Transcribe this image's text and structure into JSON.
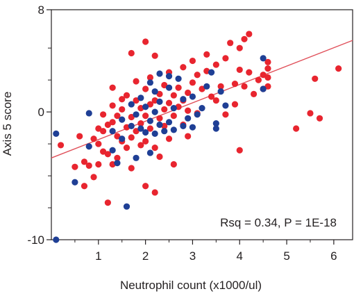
{
  "chart_data": {
    "type": "scatter",
    "title": "",
    "xlabel": "Neutrophil count (x1000/ul)",
    "ylabel": "Axis 5 score",
    "xlim": [
      0,
      6.4
    ],
    "ylim": [
      -10,
      8
    ],
    "x_ticks": [
      "1",
      "2",
      "3",
      "4",
      "5",
      "6"
    ],
    "y_ticks": [
      "8",
      "0",
      "-10"
    ],
    "annotation": "Rsq = 0.34, P = 1E-18",
    "grid": false,
    "colors": {
      "red": "#e8252f",
      "blue": "#1f3f95",
      "fit_line": "#e0505a",
      "axis": "#231f20"
    },
    "fit_line": {
      "x": [
        0,
        6.4
      ],
      "y": [
        -3.6,
        5.6
      ]
    },
    "series": [
      {
        "color": "red",
        "points": [
          [
            0.2,
            -2.6
          ],
          [
            0.5,
            -4.3
          ],
          [
            0.6,
            -1.9
          ],
          [
            0.7,
            -3.9
          ],
          [
            0.7,
            -5.8
          ],
          [
            0.8,
            -4.2
          ],
          [
            0.9,
            -2.1
          ],
          [
            0.9,
            -5.1
          ],
          [
            1.0,
            -1.3
          ],
          [
            1.0,
            -2.5
          ],
          [
            1.0,
            -4.1
          ],
          [
            1.1,
            -0.2
          ],
          [
            1.1,
            -1.5
          ],
          [
            1.1,
            -3.1
          ],
          [
            1.2,
            -7.1
          ],
          [
            1.2,
            -3.3
          ],
          [
            1.2,
            -1.0
          ],
          [
            1.3,
            0.5
          ],
          [
            1.3,
            1.9
          ],
          [
            1.3,
            -0.8
          ],
          [
            1.3,
            -4.1
          ],
          [
            1.4,
            -0.3
          ],
          [
            1.4,
            -1.9
          ],
          [
            1.4,
            -3.6
          ],
          [
            1.5,
            1.0
          ],
          [
            1.5,
            -2.3
          ],
          [
            1.5,
            0.2
          ],
          [
            1.6,
            -1.2
          ],
          [
            1.6,
            -2.8
          ],
          [
            1.6,
            1.3
          ],
          [
            1.7,
            4.6
          ],
          [
            1.7,
            -0.4
          ],
          [
            1.7,
            -2.0
          ],
          [
            1.7,
            -4.4
          ],
          [
            1.8,
            0.9
          ],
          [
            1.8,
            -1.5
          ],
          [
            1.8,
            2.4
          ],
          [
            1.9,
            0.3
          ],
          [
            1.9,
            -0.9
          ],
          [
            1.9,
            -2.6
          ],
          [
            2.0,
            5.5
          ],
          [
            2.0,
            1.8
          ],
          [
            2.0,
            -0.3
          ],
          [
            2.0,
            -5.8
          ],
          [
            2.0,
            -2.3
          ],
          [
            2.1,
            0.6
          ],
          [
            2.1,
            -1.3
          ],
          [
            2.1,
            2.7
          ],
          [
            2.2,
            -6.3
          ],
          [
            2.2,
            0.9
          ],
          [
            2.2,
            -2.8
          ],
          [
            2.2,
            4.4
          ],
          [
            2.3,
            1.4
          ],
          [
            2.3,
            -0.5
          ],
          [
            2.3,
            -3.5
          ],
          [
            2.4,
            0.2
          ],
          [
            2.4,
            2.1
          ],
          [
            2.4,
            -1.1
          ],
          [
            2.5,
            0.7
          ],
          [
            2.5,
            -2.1
          ],
          [
            2.5,
            3.1
          ],
          [
            2.6,
            1.3
          ],
          [
            2.6,
            -0.3
          ],
          [
            2.6,
            -4.1
          ],
          [
            2.7,
            0.4
          ],
          [
            2.7,
            1.9
          ],
          [
            2.8,
            0.9
          ],
          [
            2.8,
            -1.0
          ],
          [
            2.8,
            3.5
          ],
          [
            2.9,
            1.5
          ],
          [
            2.9,
            0.1
          ],
          [
            2.9,
            -1.9
          ],
          [
            3.0,
            2.3
          ],
          [
            3.0,
            4.0
          ],
          [
            3.1,
            2.9
          ],
          [
            3.1,
            -0.1
          ],
          [
            3.2,
            1.8
          ],
          [
            3.3,
            3.2
          ],
          [
            3.3,
            4.5
          ],
          [
            3.4,
            1.2
          ],
          [
            3.5,
            3.7
          ],
          [
            3.5,
            0.9
          ],
          [
            3.6,
            2.0
          ],
          [
            3.7,
            4.2
          ],
          [
            3.7,
            -0.2
          ],
          [
            3.8,
            5.4
          ],
          [
            3.9,
            2.2
          ],
          [
            3.9,
            0.6
          ],
          [
            4.0,
            5.0
          ],
          [
            4.0,
            3.3
          ],
          [
            4.0,
            -3.0
          ],
          [
            4.1,
            5.7
          ],
          [
            4.1,
            2.0
          ],
          [
            4.2,
            6.1
          ],
          [
            4.2,
            3.1
          ],
          [
            4.3,
            1.4
          ],
          [
            4.4,
            2.5
          ],
          [
            4.5,
            2.9
          ],
          [
            4.5,
            1.8
          ],
          [
            4.6,
            3.4
          ],
          [
            4.6,
            2.7
          ],
          [
            4.6,
            3.9
          ],
          [
            4.6,
            2.0
          ],
          [
            5.2,
            -1.3
          ],
          [
            5.5,
            -0.1
          ],
          [
            5.6,
            2.6
          ],
          [
            5.7,
            -0.5
          ],
          [
            6.1,
            3.4
          ]
        ]
      },
      {
        "color": "blue",
        "points": [
          [
            0.1,
            -10.0
          ],
          [
            0.1,
            -1.7
          ],
          [
            0.5,
            -5.5
          ],
          [
            0.8,
            -2.7
          ],
          [
            0.8,
            -0.1
          ],
          [
            1.3,
            -3.0
          ],
          [
            1.3,
            -1.5
          ],
          [
            1.4,
            -4.0
          ],
          [
            1.5,
            -2.1
          ],
          [
            1.5,
            -0.6
          ],
          [
            1.6,
            -7.4
          ],
          [
            1.7,
            -1.1
          ],
          [
            1.7,
            0.6
          ],
          [
            1.8,
            -3.6
          ],
          [
            1.8,
            -0.2
          ],
          [
            1.9,
            1.1
          ],
          [
            1.9,
            -1.3
          ],
          [
            2.0,
            0.4
          ],
          [
            2.0,
            -1.6
          ],
          [
            2.1,
            2.3
          ],
          [
            2.1,
            -0.7
          ],
          [
            2.1,
            -3.2
          ],
          [
            2.2,
            1.6
          ],
          [
            2.2,
            0.0
          ],
          [
            2.2,
            -1.7
          ],
          [
            2.3,
            3.0
          ],
          [
            2.3,
            0.8
          ],
          [
            2.3,
            -1.0
          ],
          [
            2.4,
            -1.5
          ],
          [
            2.5,
            1.9
          ],
          [
            2.5,
            -0.8
          ],
          [
            2.5,
            2.8
          ],
          [
            2.6,
            0.3
          ],
          [
            2.6,
            -1.4
          ],
          [
            2.7,
            2.6
          ],
          [
            2.8,
            -1.1
          ],
          [
            2.8,
            1.0
          ],
          [
            2.9,
            -0.5
          ],
          [
            3.0,
            1.2
          ],
          [
            3.0,
            -1.2
          ],
          [
            3.1,
            -0.2
          ],
          [
            3.2,
            0.3
          ],
          [
            3.3,
            2.0
          ],
          [
            3.4,
            3.1
          ],
          [
            3.5,
            -0.9
          ],
          [
            3.5,
            -1.3
          ],
          [
            3.6,
            1.6
          ],
          [
            3.7,
            0.5
          ],
          [
            4.5,
            4.2
          ],
          [
            4.5,
            1.8
          ]
        ]
      }
    ]
  }
}
